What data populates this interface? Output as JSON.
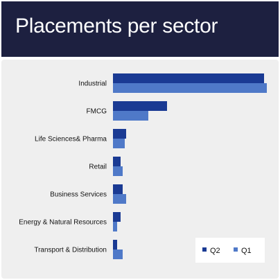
{
  "title": "Placements per sector",
  "colors": {
    "header_bg": "#1d2040",
    "panel_bg": "#efefef",
    "q2": "#1a3a93",
    "q1": "#4f79c8"
  },
  "chart_data": {
    "type": "bar",
    "orientation": "horizontal",
    "title": "Placements per sector",
    "xlabel": "",
    "ylabel": "",
    "grid": false,
    "legend_position": "bottom-right",
    "categories": [
      "Industrial",
      "FMCG",
      "Life Sciences& Pharma",
      "Retail",
      "Business Services",
      "Energy & Natural Resources",
      "Transport & Distribution"
    ],
    "series": [
      {
        "name": "Q2",
        "color": "#1a3a93",
        "values": [
          218,
          78,
          19,
          11,
          14,
          11,
          6
        ]
      },
      {
        "name": "Q1",
        "color": "#4f79c8",
        "values": [
          222,
          51,
          17,
          14,
          19,
          6,
          14
        ]
      }
    ],
    "xlim": [
      0,
      222
    ]
  }
}
